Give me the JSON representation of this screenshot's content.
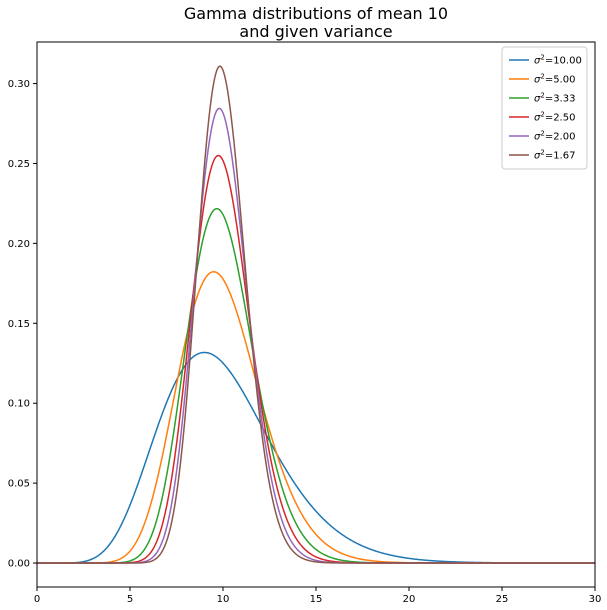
{
  "chart_data": {
    "type": "line",
    "title_lines": [
      "Gamma distributions of mean 10",
      "and given variance"
    ],
    "xlabel": "",
    "ylabel": "",
    "xlim": [
      0,
      30
    ],
    "ylim": [
      -0.015,
      0.326
    ],
    "xticks": [
      0,
      5,
      10,
      15,
      20,
      25,
      30
    ],
    "yticks": [
      0.0,
      0.05,
      0.1,
      0.15,
      0.2,
      0.25,
      0.3
    ],
    "ytick_labels": [
      "0.00",
      "0.05",
      "0.10",
      "0.15",
      "0.20",
      "0.25",
      "0.30"
    ],
    "grid": false,
    "legend_position": "top-right",
    "mean": 10,
    "series": [
      {
        "name": "10.00",
        "variance": 10.0,
        "color": "#1f77b4"
      },
      {
        "name": "5.00",
        "variance": 5.0,
        "color": "#ff7f0e"
      },
      {
        "name": "3.33",
        "variance": 3.33,
        "color": "#2ca02c"
      },
      {
        "name": "2.50",
        "variance": 2.5,
        "color": "#d62728"
      },
      {
        "name": "2.00",
        "variance": 2.0,
        "color": "#9467bd"
      },
      {
        "name": "1.67",
        "variance": 1.67,
        "color": "#8c564b"
      }
    ]
  }
}
